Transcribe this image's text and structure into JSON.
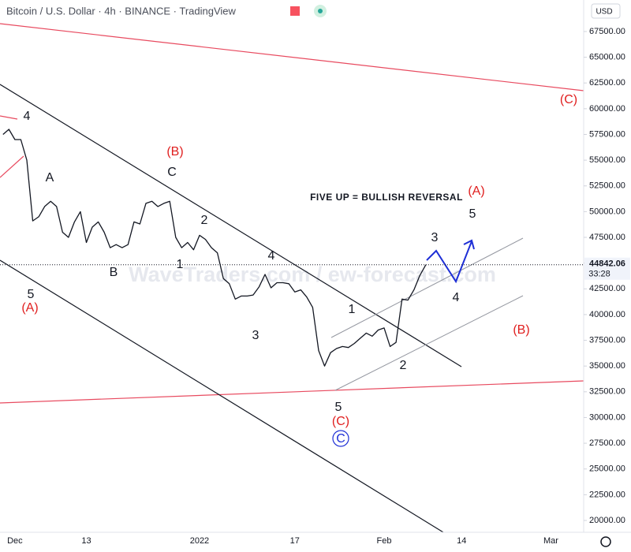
{
  "header": {
    "title": "Bitcoin / U.S. Dollar · 4h · BINANCE · TradingView",
    "currency": "USD",
    "watermark": "WaveTraders.com / ew-forecast.com"
  },
  "chart_data": {
    "type": "line",
    "color": "#131722",
    "categories": [
      null,
      null,
      "Dec",
      null,
      null,
      null,
      null,
      null,
      null,
      null,
      null,
      null,
      null,
      null,
      "13",
      null,
      null,
      null,
      null,
      null,
      null,
      null,
      null,
      null,
      null,
      null,
      null,
      null,
      null,
      null,
      null,
      null,
      null,
      "2022",
      null,
      null,
      null,
      null,
      null,
      null,
      null,
      null,
      null,
      null,
      null,
      null,
      null,
      null,
      null,
      "17",
      null,
      null,
      null,
      null,
      null,
      null,
      null,
      null,
      null,
      null,
      null,
      null,
      null,
      null,
      "Feb",
      null,
      null,
      null,
      null,
      null,
      null,
      null,
      null,
      null,
      null,
      null,
      null,
      "14",
      null,
      null,
      null,
      null,
      null,
      null,
      null,
      null,
      null,
      null,
      null,
      null,
      null,
      null,
      "Mar",
      null,
      null,
      null,
      null,
      null
    ],
    "values": [
      57500,
      58000,
      57000,
      57000,
      55000,
      49100,
      49500,
      50500,
      51000,
      50500,
      48000,
      47500,
      49000,
      50000,
      47000,
      48500,
      49000,
      48000,
      46500,
      46800,
      46500,
      46800,
      49000,
      48800,
      50800,
      51000,
      50500,
      50800,
      51000,
      47500,
      46500,
      47000,
      46300,
      47700,
      47300,
      46500,
      46000,
      43500,
      43000,
      41500,
      41800,
      41800,
      41900,
      42700,
      43900,
      42600,
      43100,
      43100,
      43000,
      42200,
      42400,
      41700,
      40700,
      36500,
      35000,
      36300,
      36700,
      36900,
      36800,
      37200,
      37700,
      38200,
      37900,
      38500,
      38700,
      36900,
      37300,
      41500,
      41400,
      42400,
      43800,
      44842,
      null,
      null,
      null,
      null,
      null,
      null,
      null,
      null,
      null,
      null,
      null,
      null,
      null,
      null,
      null,
      null,
      null,
      null,
      null,
      null,
      null,
      null,
      null,
      null,
      null,
      null
    ],
    "ylim": [
      18850,
      70560
    ],
    "yticks": [
      {
        "value": 20000,
        "label": "20000.00"
      },
      {
        "value": 22500,
        "label": "22500.00"
      },
      {
        "value": 25000,
        "label": "25000.00"
      },
      {
        "value": 27500,
        "label": "27500.00"
      },
      {
        "value": 30000,
        "label": "30000.00"
      },
      {
        "value": 32500,
        "label": "32500.00"
      },
      {
        "value": 35000,
        "label": "35000.00"
      },
      {
        "value": 37500,
        "label": "37500.00"
      },
      {
        "value": 40000,
        "label": "40000.00"
      },
      {
        "value": 42500,
        "label": "42500.00"
      },
      {
        "value": 45000,
        "label": "45000.00"
      },
      {
        "value": 47500,
        "label": "47500.00"
      },
      {
        "value": 50000,
        "label": "50000.00"
      },
      {
        "value": 52500,
        "label": "52500.00"
      },
      {
        "value": 55000,
        "label": "55000.00"
      },
      {
        "value": 57500,
        "label": "57500.00"
      },
      {
        "value": 60000,
        "label": "60000.00"
      },
      {
        "value": 62500,
        "label": "62500.00"
      },
      {
        "value": 65000,
        "label": "65000.00"
      },
      {
        "value": 67500,
        "label": "67500.00"
      }
    ],
    "grid": false,
    "last_price": 44842.06,
    "countdown": "33:28",
    "annotations": [
      "4",
      "A",
      "(B)",
      "C",
      "2",
      "1",
      "B",
      "5",
      "(A)",
      "4",
      "3",
      "1",
      "5",
      "(C)",
      "C",
      "2",
      "3",
      "4",
      "5",
      "(A)",
      "(C)",
      "(B)",
      "FIVE UP = BULLISH REVERSAL"
    ]
  }
}
